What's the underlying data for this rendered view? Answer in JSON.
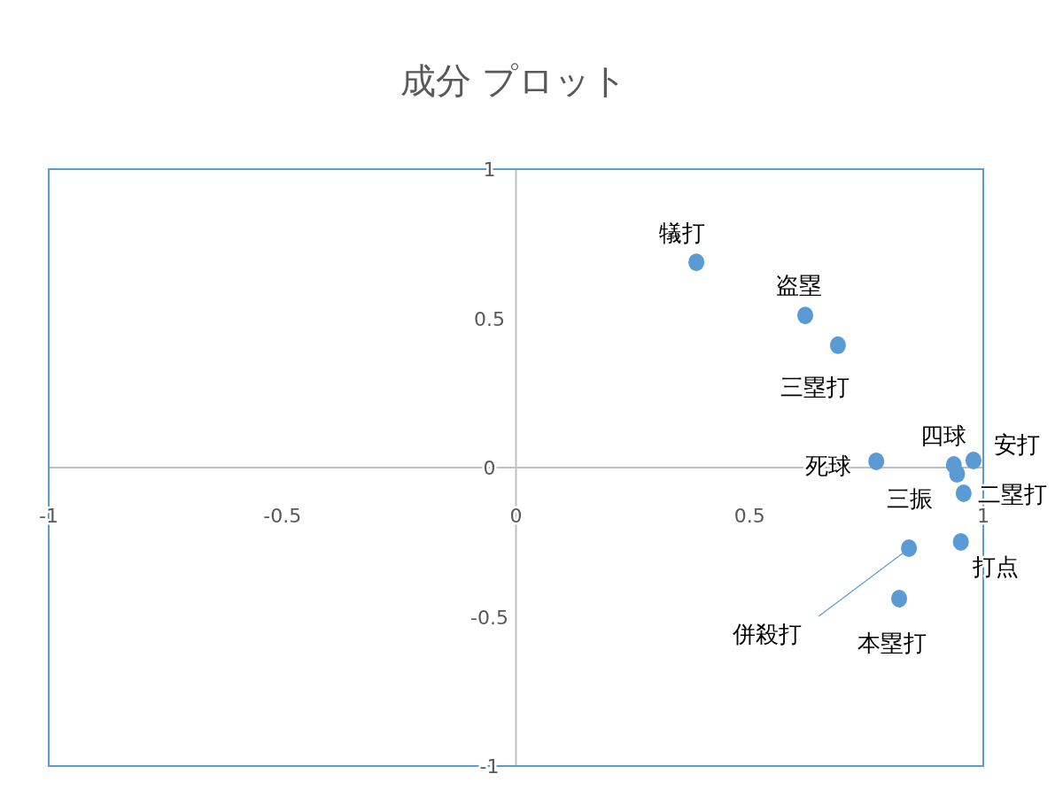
{
  "chart_data": {
    "type": "scatter",
    "title": "成分 プロット",
    "x": [
      0.386,
      0.619,
      0.689,
      0.771,
      0.937,
      0.944,
      0.979,
      0.958,
      0.952,
      0.841,
      0.82
    ],
    "values": [
      0.688,
      0.51,
      0.41,
      0.021,
      0.009,
      -0.021,
      0.024,
      -0.086,
      -0.249,
      -0.27,
      -0.439
    ],
    "color": "#5b9bd5",
    "marker": "circle",
    "xlim": [
      -1,
      1
    ],
    "ylim": [
      -1,
      1
    ],
    "xticks": [
      -1,
      -0.5,
      0,
      0.5,
      1
    ],
    "yticks": [
      -1,
      -0.5,
      0,
      0.5,
      1
    ],
    "grid": false,
    "annotations": [
      {
        "text": "犠打",
        "x": 0.386,
        "y": 0.688
      },
      {
        "text": "盗塁",
        "x": 0.619,
        "y": 0.51
      },
      {
        "text": "三塁打",
        "x": 0.689,
        "y": 0.41
      },
      {
        "text": "死球",
        "x": 0.771,
        "y": 0.021
      },
      {
        "text": "四球",
        "x": 0.937,
        "y": 0.009
      },
      {
        "text": "三振",
        "x": 0.944,
        "y": -0.021
      },
      {
        "text": "安打",
        "x": 0.979,
        "y": 0.024
      },
      {
        "text": "二塁打",
        "x": 0.958,
        "y": -0.086
      },
      {
        "text": "打点",
        "x": 0.952,
        "y": -0.249
      },
      {
        "text": "併殺打",
        "x": 0.841,
        "y": -0.27
      },
      {
        "text": "本塁打",
        "x": 0.82,
        "y": -0.439
      }
    ]
  }
}
